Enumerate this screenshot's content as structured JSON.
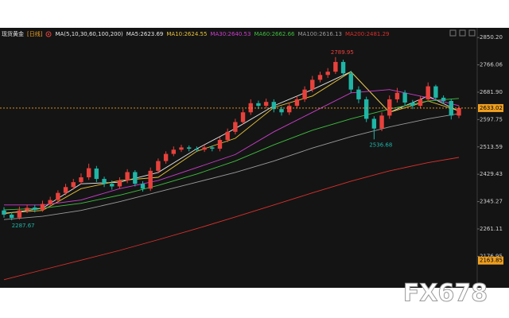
{
  "chart_data": {
    "type": "candlestick",
    "symbol": "现货黄金",
    "period": "[日线]",
    "ma_params": "MA(5,10,30,60,100,200)",
    "watermark": "FX678",
    "ylim": [
      2080,
      2880
    ],
    "yticks": [
      {
        "value": 2850.2,
        "label": "2850.20"
      },
      2766.06,
      {
        "value": 2681.9,
        "label": "2681.90"
      },
      2597.75,
      2513.59,
      2429.43,
      2345.27,
      2261.11,
      2176.95
    ],
    "up_color": "#e8413c",
    "down_color": "#1fb5a6",
    "candles": {
      "open": [
        2318,
        2305,
        2296,
        2318,
        2327,
        2320,
        2338,
        2350,
        2372,
        2390,
        2405,
        2420,
        2447,
        2415,
        2400,
        2392,
        2410,
        2436,
        2400,
        2385,
        2440,
        2470,
        2492,
        2505,
        2512,
        2508,
        2505,
        2512,
        2508,
        2535,
        2560,
        2590,
        2620,
        2648,
        2640,
        2652,
        2630,
        2620,
        2640,
        2660,
        2690,
        2720,
        2735,
        2745,
        2775,
        2740,
        2690,
        2660,
        2600,
        2570,
        2610,
        2660,
        2680,
        2650,
        2640,
        2660,
        2700,
        2665,
        2655,
        2610
      ],
      "high": [
        2328,
        2312,
        2330,
        2336,
        2335,
        2348,
        2360,
        2380,
        2400,
        2415,
        2432,
        2462,
        2455,
        2422,
        2410,
        2420,
        2445,
        2442,
        2408,
        2450,
        2478,
        2500,
        2515,
        2520,
        2518,
        2515,
        2520,
        2518,
        2544,
        2570,
        2600,
        2630,
        2660,
        2656,
        2662,
        2660,
        2638,
        2650,
        2670,
        2700,
        2732,
        2745,
        2756,
        2789.95,
        2782,
        2748,
        2700,
        2668,
        2608,
        2620,
        2672,
        2695,
        2688,
        2658,
        2670,
        2712,
        2705,
        2672,
        2660,
        2640
      ],
      "low": [
        2296,
        2287.67,
        2290,
        2310,
        2312,
        2314,
        2330,
        2342,
        2365,
        2382,
        2398,
        2412,
        2405,
        2390,
        2382,
        2385,
        2402,
        2392,
        2376,
        2378,
        2432,
        2462,
        2485,
        2498,
        2500,
        2498,
        2498,
        2500,
        2500,
        2528,
        2552,
        2582,
        2612,
        2630,
        2632,
        2620,
        2610,
        2612,
        2632,
        2652,
        2682,
        2712,
        2726,
        2738,
        2730,
        2680,
        2648,
        2590,
        2536.68,
        2562,
        2600,
        2650,
        2640,
        2630,
        2632,
        2652,
        2655,
        2645,
        2598,
        2602
      ],
      "close": [
        2305,
        2295,
        2318,
        2326,
        2320,
        2338,
        2350,
        2372,
        2390,
        2405,
        2420,
        2448,
        2415,
        2400,
        2392,
        2410,
        2436,
        2400,
        2385,
        2440,
        2470,
        2492,
        2505,
        2512,
        2508,
        2505,
        2512,
        2508,
        2535,
        2560,
        2590,
        2620,
        2648,
        2640,
        2652,
        2630,
        2620,
        2640,
        2660,
        2690,
        2720,
        2735,
        2745,
        2775,
        2740,
        2690,
        2660,
        2600,
        2570,
        2610,
        2660,
        2680,
        2650,
        2640,
        2660,
        2700,
        2665,
        2655,
        2610,
        2633.02
      ]
    },
    "ma_x": [
      0,
      5,
      10,
      15,
      20,
      25,
      30,
      35,
      40,
      45,
      50,
      55,
      59
    ],
    "series": [
      {
        "name": "MA5:2623.69",
        "color": "#e6e6e6",
        "values": [
          2308,
          2325,
          2400,
          2405,
          2435,
          2508,
          2570,
          2640,
          2690,
          2745,
          2620,
          2670,
          2623.69
        ]
      },
      {
        "name": "MA10:2624.55",
        "color": "#e8c33a",
        "values": [
          2310,
          2318,
          2385,
          2410,
          2420,
          2500,
          2540,
          2635,
          2670,
          2745,
          2620,
          2655,
          2624.55
        ]
      },
      {
        "name": "MA30:2640.53",
        "color": "#cc3fcc",
        "values": [
          2335,
          2335,
          2350,
          2385,
          2410,
          2450,
          2490,
          2560,
          2620,
          2680,
          2690,
          2665,
          2640.53
        ]
      },
      {
        "name": "MA60:2662.66",
        "color": "#3fbf3f",
        "values": [
          2320,
          2325,
          2340,
          2365,
          2395,
          2430,
          2470,
          2520,
          2565,
          2600,
          2630,
          2655,
          2662.66
        ]
      },
      {
        "name": "MA100:2616.13",
        "color": "#9a9a9a",
        "values": [
          2290,
          2300,
          2318,
          2345,
          2375,
          2405,
          2435,
          2470,
          2510,
          2545,
          2575,
          2600,
          2616.13
        ]
      },
      {
        "name": "MA200:2481.29",
        "color": "#d9302c",
        "values": [
          2105,
          2135,
          2165,
          2195,
          2228,
          2262,
          2298,
          2335,
          2372,
          2408,
          2440,
          2465,
          2481.29
        ]
      }
    ],
    "last_price": 2633.02,
    "last_price_color": "#f0a020",
    "low_marker": 2163.85,
    "annotations": [
      2789.95,
      2536.68,
      2287.67
    ]
  }
}
